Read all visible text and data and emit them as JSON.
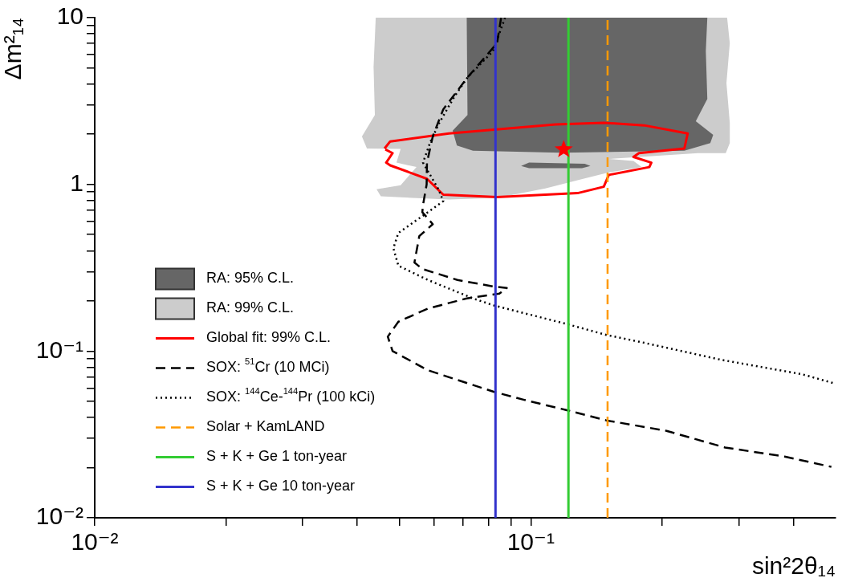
{
  "chart_data": {
    "type": "line",
    "xlabel": "sin²2θ₁₄",
    "ylabel": "Δm²₁₄",
    "log": "xy",
    "legend": "bottom left",
    "xlim": [
      0.01,
      0.5
    ],
    "ylim": [
      0.01,
      10
    ],
    "xticks": [
      {
        "value": 0.01,
        "label": "10⁻²"
      },
      {
        "value": 0.02,
        "label": null
      },
      {
        "value": 0.03,
        "label": null
      },
      {
        "value": 0.04,
        "label": null
      },
      {
        "value": 0.05,
        "label": null
      },
      {
        "value": 0.06,
        "label": null
      },
      {
        "value": 0.07,
        "label": null
      },
      {
        "value": 0.08,
        "label": null
      },
      {
        "value": 0.09,
        "label": null
      },
      {
        "value": 0.1,
        "label": "10⁻¹"
      },
      {
        "value": 0.2,
        "label": null
      },
      {
        "value": 0.3,
        "label": null
      },
      {
        "value": 0.4,
        "label": null
      }
    ],
    "yticks": [
      {
        "value": 0.01,
        "label": "10⁻²"
      },
      {
        "value": 0.02,
        "label": null
      },
      {
        "value": 0.03,
        "label": null
      },
      {
        "value": 0.04,
        "label": null
      },
      {
        "value": 0.05,
        "label": null
      },
      {
        "value": 0.06,
        "label": null
      },
      {
        "value": 0.07,
        "label": null
      },
      {
        "value": 0.08,
        "label": null
      },
      {
        "value": 0.09,
        "label": null
      },
      {
        "value": 0.1,
        "label": "10⁻¹"
      },
      {
        "value": 0.2,
        "label": null
      },
      {
        "value": 0.3,
        "label": null
      },
      {
        "value": 0.4,
        "label": null
      },
      {
        "value": 0.5,
        "label": null
      },
      {
        "value": 0.6,
        "label": null
      },
      {
        "value": 0.7,
        "label": null
      },
      {
        "value": 0.8,
        "label": null
      },
      {
        "value": 0.9,
        "label": null
      },
      1,
      {
        "value": 2,
        "label": null
      },
      {
        "value": 3,
        "label": null
      },
      {
        "value": 4,
        "label": null
      },
      {
        "value": 5,
        "label": null
      },
      {
        "value": 6,
        "label": null
      },
      {
        "value": 7,
        "label": null
      },
      {
        "value": 8,
        "label": null
      },
      {
        "value": 9,
        "label": null
      },
      10
    ],
    "series": [
      {
        "type": "area",
        "color": "#666666",
        "x": [
          0.095,
          0.0991,
          0.133,
          0.137,
          0.131,
          0.0991
        ],
        "values": [
          1.29,
          1.35,
          1.33,
          1.29,
          1.25,
          1.25
        ]
      },
      {
        "name": "RA: 95% C.L.",
        "type": "area",
        "color": "#666666",
        "x": [
          0.0713,
          0.0716,
          0.0662,
          0.0677,
          0.0737,
          0.1175,
          0.225,
          0.258,
          0.262,
          0.239,
          0.254,
          0.252,
          0.254
        ],
        "values": [
          10,
          2.61,
          2.1,
          1.71,
          1.59,
          1.55,
          1.59,
          1.77,
          1.98,
          2.39,
          3.25,
          6.3,
          10
        ]
      },
      {
        "name": "RA: 99% C.L.",
        "type": "area",
        "color": "#cccccc",
        "x": [
          0.0441,
          0.0436,
          0.0439,
          0.041,
          0.0421,
          0.0503,
          0.0492,
          0.0547,
          0.0503,
          0.0443,
          0.0453,
          0.0649,
          0.0837,
          0.108,
          0.128,
          0.151,
          0.1795,
          0.172,
          0.151,
          0.242,
          0.28,
          0.286,
          0.286,
          0.281,
          0.286,
          0.282
        ],
        "values": [
          10,
          5.05,
          2.61,
          1.94,
          1.64,
          1.63,
          1.35,
          1.27,
          0.989,
          0.936,
          0.848,
          0.811,
          0.829,
          0.946,
          1.06,
          1.18,
          1.27,
          1.38,
          1.42,
          1.54,
          1.54,
          1.77,
          2.34,
          4.05,
          7.03,
          10
        ]
      },
      {
        "name": "Global fit: 99% C.L.",
        "color": "#ff0000",
        "line_style": "solid",
        "x": [
          0.0462,
          0.0476,
          0.0649,
          0.114,
          0.147,
          0.182,
          0.229,
          0.225,
          0.177,
          0.172,
          0.189,
          0.187,
          0.151,
          0.147,
          0.128,
          0.0837,
          0.063,
          0.0578,
          0.0476,
          0.0466,
          0.0482,
          0.0464
        ],
        "values": [
          1.64,
          1.81,
          2.02,
          2.29,
          2.34,
          2.26,
          2.02,
          1.64,
          1.54,
          1.46,
          1.35,
          1.27,
          1.14,
          0.968,
          0.886,
          0.838,
          0.867,
          1.08,
          1.3,
          1.35,
          1.54,
          1.62
        ]
      },
      {
        "name": "SOX: $^{51}$Cr (10 MCi)",
        "color": "#000000",
        "line_style": "dashed",
        "x": [
          0.0855,
          0.0837,
          0.0716,
          0.063,
          0.0596,
          0.0578,
          0.0577,
          0.0566,
          0.0564,
          0.0596,
          0.0555,
          0.0541,
          0.0564,
          0.0679,
          0.0822,
          0.0881,
          0.0847,
          0.0713,
          0.0581,
          0.0497,
          0.047,
          0.0482,
          0.0581,
          0.0822,
          0.0962,
          0.1205,
          0.149,
          0.204,
          0.279,
          0.382,
          0.489
        ],
        "values": [
          10,
          7.03,
          4.38,
          2.82,
          1.94,
          1.35,
          1,
          0.751,
          0.681,
          0.577,
          0.489,
          0.34,
          0.311,
          0.267,
          0.244,
          0.239,
          0.221,
          0.207,
          0.18,
          0.15,
          0.122,
          0.1,
          0.0767,
          0.057,
          0.0511,
          0.0443,
          0.0384,
          0.0333,
          0.0264,
          0.0233,
          0.0202
        ]
      },
      {
        "name": "SOX: $^{144}$Ce-$^{144}$Pr (100 kCi)",
        "color": "#000000",
        "line_style": "dotted",
        "x": [
          0.0873,
          0.0819,
          0.0716,
          0.0668,
          0.0617,
          0.0589,
          0.0566,
          0.0614,
          0.063,
          0.0581,
          0.0497,
          0.0484,
          0.0497,
          0.0581,
          0.0737,
          0.0822,
          0.1225,
          0.149,
          0.1795,
          0.274,
          0.419,
          0.5
        ],
        "values": [
          10,
          6.3,
          4.38,
          3.36,
          2.34,
          1.81,
          1.35,
          0.936,
          0.794,
          0.681,
          0.511,
          0.414,
          0.325,
          0.267,
          0.207,
          0.188,
          0.144,
          0.125,
          0.113,
          0.0885,
          0.0726,
          0.0637
        ]
      },
      {
        "name": "Solar + KamLAND",
        "color": "#ff9900",
        "line_style": "dashed",
        "x": [
          0.15,
          0.15
        ],
        "values": [
          0.01,
          10
        ]
      },
      {
        "name": "S + K + Ge 1 ton-year",
        "color": "#33cc33",
        "line_style": "solid",
        "x": [
          0.122,
          0.122
        ],
        "values": [
          0.01,
          10
        ]
      },
      {
        "name": "S + K + Ge 10 ton-year",
        "color": "#3333cc",
        "line_style": "solid",
        "x": [
          0.083,
          0.083
        ],
        "values": [
          0.01,
          10
        ]
      },
      {
        "type": "scatter",
        "marker": "star",
        "color": "#ff0000",
        "x": [
          0.119
        ],
        "values": [
          1.62
        ]
      }
    ]
  }
}
